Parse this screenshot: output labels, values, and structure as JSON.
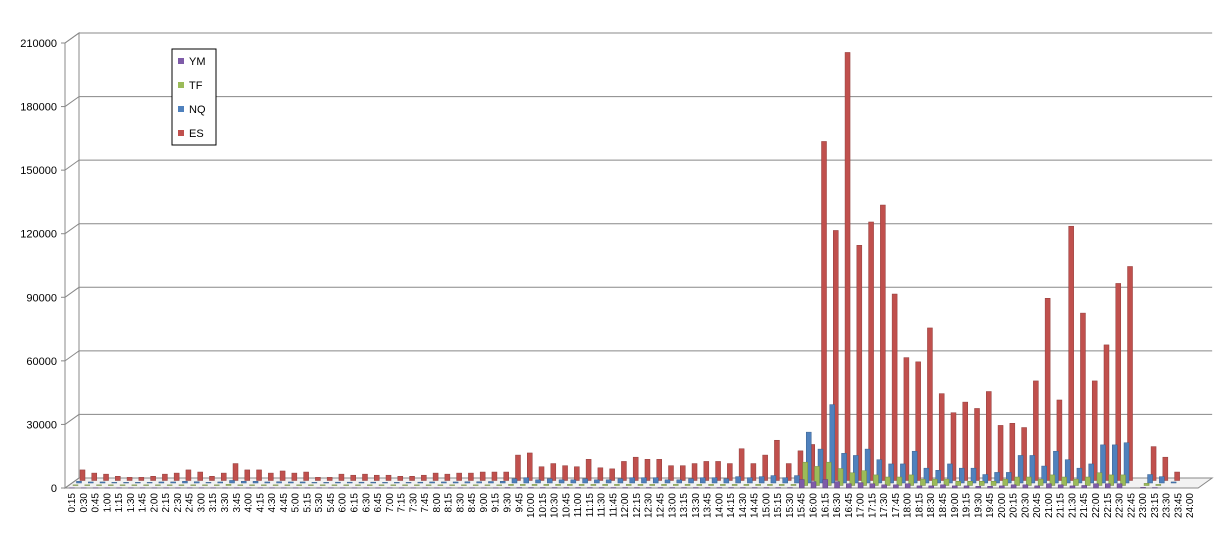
{
  "chart_data": {
    "type": "bar3d",
    "categories": [
      "0:15",
      "0:30",
      "0:45",
      "1:00",
      "1:15",
      "1:30",
      "1:45",
      "2:00",
      "2:15",
      "2:30",
      "2:45",
      "3:00",
      "3:15",
      "3:30",
      "3:45",
      "4:00",
      "4:15",
      "4:30",
      "4:45",
      "5:00",
      "5:15",
      "5:30",
      "5:45",
      "6:00",
      "6:15",
      "6:30",
      "6:45",
      "7:00",
      "7:15",
      "7:30",
      "7:45",
      "8:00",
      "8:15",
      "8:30",
      "8:45",
      "9:00",
      "9:15",
      "9:30",
      "9:45",
      "10:00",
      "10:15",
      "10:30",
      "10:45",
      "11:00",
      "11:15",
      "11:30",
      "11:45",
      "12:00",
      "12:15",
      "12:30",
      "12:45",
      "13:00",
      "13:15",
      "13:30",
      "13:45",
      "14:00",
      "14:15",
      "14:30",
      "14:45",
      "15:00",
      "15:15",
      "15:30",
      "15:45",
      "16:00",
      "16:15",
      "16:30",
      "16:45",
      "17:00",
      "17:15",
      "17:30",
      "17:45",
      "18:00",
      "18:15",
      "18:30",
      "18:45",
      "19:00",
      "19:15",
      "19:30",
      "19:45",
      "20:00",
      "20:15",
      "20:30",
      "20:45",
      "21:00",
      "21:15",
      "21:30",
      "21:45",
      "22:00",
      "22:15",
      "22:30",
      "22:45",
      "23:00",
      "23:15",
      "23:30",
      "23:45",
      "24:00"
    ],
    "series": [
      {
        "name": "YM",
        "color": "#7e5ba8",
        "values": [
          100,
          100,
          100,
          100,
          100,
          100,
          100,
          100,
          100,
          100,
          100,
          100,
          100,
          100,
          100,
          100,
          100,
          100,
          100,
          100,
          100,
          100,
          100,
          100,
          100,
          100,
          100,
          100,
          100,
          100,
          100,
          100,
          100,
          100,
          100,
          100,
          100,
          200,
          200,
          200,
          200,
          200,
          200,
          200,
          200,
          200,
          200,
          200,
          200,
          200,
          200,
          200,
          200,
          200,
          200,
          200,
          200,
          200,
          200,
          200,
          200,
          200,
          4000,
          3000,
          4000,
          3000,
          2000,
          2500,
          2000,
          1500,
          1500,
          2000,
          1000,
          1000,
          1500,
          1000,
          1000,
          800,
          800,
          1000,
          1500,
          1500,
          1000,
          2000,
          1500,
          1000,
          1200,
          2000,
          2000,
          2000,
          0,
          300,
          200,
          0,
          0,
          0
        ]
      },
      {
        "name": "TF",
        "color": "#9bbb59",
        "values": [
          300,
          300,
          300,
          300,
          300,
          300,
          300,
          300,
          300,
          300,
          300,
          300,
          300,
          500,
          300,
          300,
          300,
          300,
          300,
          300,
          300,
          300,
          300,
          300,
          300,
          300,
          300,
          300,
          300,
          300,
          300,
          300,
          300,
          300,
          300,
          300,
          300,
          500,
          500,
          500,
          500,
          500,
          500,
          500,
          500,
          500,
          500,
          500,
          500,
          500,
          500,
          500,
          500,
          500,
          500,
          500,
          500,
          500,
          500,
          500,
          500,
          500,
          11000,
          9000,
          11000,
          8000,
          6000,
          7000,
          5000,
          4000,
          4000,
          5000,
          3000,
          3000,
          3000,
          2000,
          2000,
          2000,
          2000,
          3000,
          4000,
          4000,
          3000,
          5000,
          4000,
          3000,
          4000,
          6000,
          5000,
          5000,
          0,
          1000,
          500,
          0,
          0,
          0
        ]
      },
      {
        "name": "NQ",
        "color": "#4f81bd",
        "values": [
          800,
          500,
          500,
          300,
          300,
          300,
          300,
          500,
          500,
          800,
          600,
          300,
          500,
          1200,
          800,
          800,
          500,
          600,
          500,
          500,
          300,
          300,
          400,
          400,
          400,
          400,
          300,
          300,
          300,
          400,
          500,
          500,
          500,
          600,
          600,
          700,
          800,
          2000,
          2500,
          1500,
          2000,
          1500,
          1500,
          2000,
          1500,
          1500,
          2000,
          2500,
          2500,
          2500,
          1500,
          1500,
          2000,
          2500,
          2500,
          2000,
          3000,
          2500,
          3000,
          3500,
          2500,
          3500,
          24000,
          16000,
          37000,
          14000,
          13000,
          16000,
          11000,
          9000,
          9000,
          15000,
          7000,
          6000,
          9000,
          7000,
          7000,
          4000,
          5000,
          5000,
          13000,
          13000,
          8000,
          15000,
          11000,
          7000,
          9000,
          18000,
          18000,
          19000,
          0,
          4000,
          3000,
          500,
          0,
          0
        ]
      },
      {
        "name": "ES",
        "color": "#c0504d",
        "values": [
          5000,
          3500,
          3000,
          2000,
          1500,
          1500,
          2000,
          3000,
          3500,
          5000,
          4000,
          2000,
          3500,
          8000,
          5000,
          5000,
          3500,
          4500,
          3500,
          4000,
          1500,
          1500,
          3000,
          2500,
          3000,
          2500,
          2500,
          2000,
          2000,
          2500,
          3500,
          3000,
          3500,
          3500,
          4000,
          4000,
          4000,
          12000,
          13000,
          6500,
          8000,
          7000,
          6500,
          10000,
          6000,
          5500,
          9000,
          11000,
          10000,
          10000,
          7000,
          7000,
          8000,
          9000,
          9000,
          8000,
          15000,
          8000,
          12000,
          19000,
          8000,
          14000,
          17000,
          160000,
          118000,
          202000,
          111000,
          122000,
          130000,
          88000,
          58000,
          56000,
          72000,
          41000,
          32000,
          37000,
          34000,
          42000,
          26000,
          27000,
          25000,
          47000,
          86000,
          38000,
          120000,
          79000,
          47000,
          64000,
          93000,
          101000,
          0,
          16000,
          11000,
          4000,
          0,
          0
        ]
      }
    ],
    "ylim": [
      0,
      210000
    ],
    "yticks": [
      0,
      30000,
      60000,
      90000,
      120000,
      150000,
      180000,
      210000
    ],
    "grid": true,
    "legend": "top-left"
  }
}
